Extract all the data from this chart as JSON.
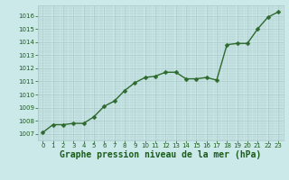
{
  "x": [
    0,
    1,
    2,
    3,
    4,
    5,
    6,
    7,
    8,
    9,
    10,
    11,
    12,
    13,
    14,
    15,
    16,
    17,
    18,
    19,
    20,
    21,
    22,
    23
  ],
  "y": [
    1007.1,
    1007.7,
    1007.7,
    1007.8,
    1007.8,
    1008.3,
    1009.1,
    1009.5,
    1010.3,
    1010.9,
    1011.3,
    1011.4,
    1011.7,
    1011.7,
    1011.2,
    1011.2,
    1011.3,
    1011.1,
    1013.8,
    1013.9,
    1013.9,
    1015.0,
    1015.9,
    1016.3
  ],
  "line_color": "#2d6a2d",
  "marker": "D",
  "marker_size": 2.5,
  "line_width": 1.0,
  "bg_color": "#cce9e9",
  "grid_color": "#aac8c8",
  "xlabel": "Graphe pression niveau de la mer (hPa)",
  "xlabel_fontsize": 7.0,
  "xlabel_color": "#1a5c1a",
  "ylim": [
    1006.5,
    1016.8
  ],
  "xlim": [
    -0.5,
    23.5
  ],
  "yticks": [
    1007,
    1008,
    1009,
    1010,
    1011,
    1012,
    1013,
    1014,
    1015,
    1016
  ],
  "xticks": [
    0,
    1,
    2,
    3,
    4,
    5,
    6,
    7,
    8,
    9,
    10,
    11,
    12,
    13,
    14,
    15,
    16,
    17,
    18,
    19,
    20,
    21,
    22,
    23
  ],
  "tick_fontsize": 5.0,
  "tick_color": "#1a5c1a"
}
